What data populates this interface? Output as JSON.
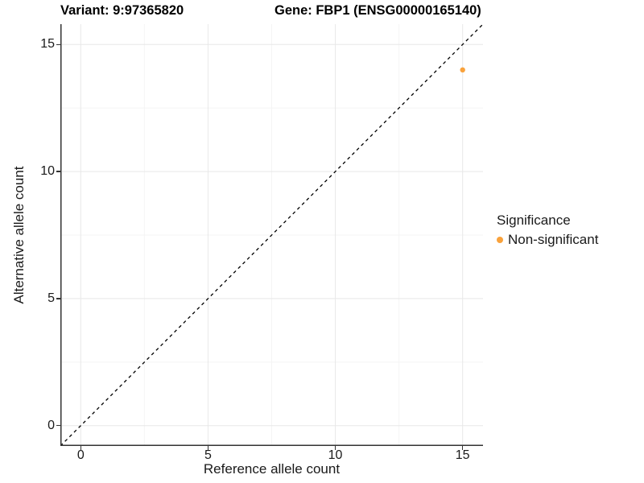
{
  "title": {
    "variant": "Variant: 9:97365820",
    "gene": "Gene: FBP1 (ENSG00000165140)"
  },
  "chart_data": {
    "type": "scatter",
    "xlabel": "Reference allele count",
    "ylabel": "Alternative allele count",
    "xlim": [
      -0.8,
      15.8
    ],
    "ylim": [
      -0.8,
      15.8
    ],
    "xticks": [
      0,
      5,
      10,
      15
    ],
    "yticks": [
      0,
      5,
      10,
      15
    ],
    "minor_xticks": [
      2.5,
      7.5,
      12.5
    ],
    "minor_yticks": [
      2.5,
      7.5,
      12.5
    ],
    "grid": true,
    "points": [
      {
        "x": 15,
        "y": 14,
        "series": "Non-significant"
      }
    ],
    "reference_line": {
      "kind": "identity",
      "style": "dashed",
      "from": -0.8,
      "to": 15.8
    },
    "legend": {
      "title": "Significance",
      "position": "right",
      "items": [
        {
          "label": "Non-significant",
          "color": "#F9A23C"
        }
      ]
    }
  },
  "colors": {
    "point": "#F9A23C",
    "grid_major": "#E8E8E8",
    "grid_minor": "#F4F4F4",
    "axis_line": "#333333",
    "dashed_line": "#000000",
    "background": "#FFFFFF"
  }
}
